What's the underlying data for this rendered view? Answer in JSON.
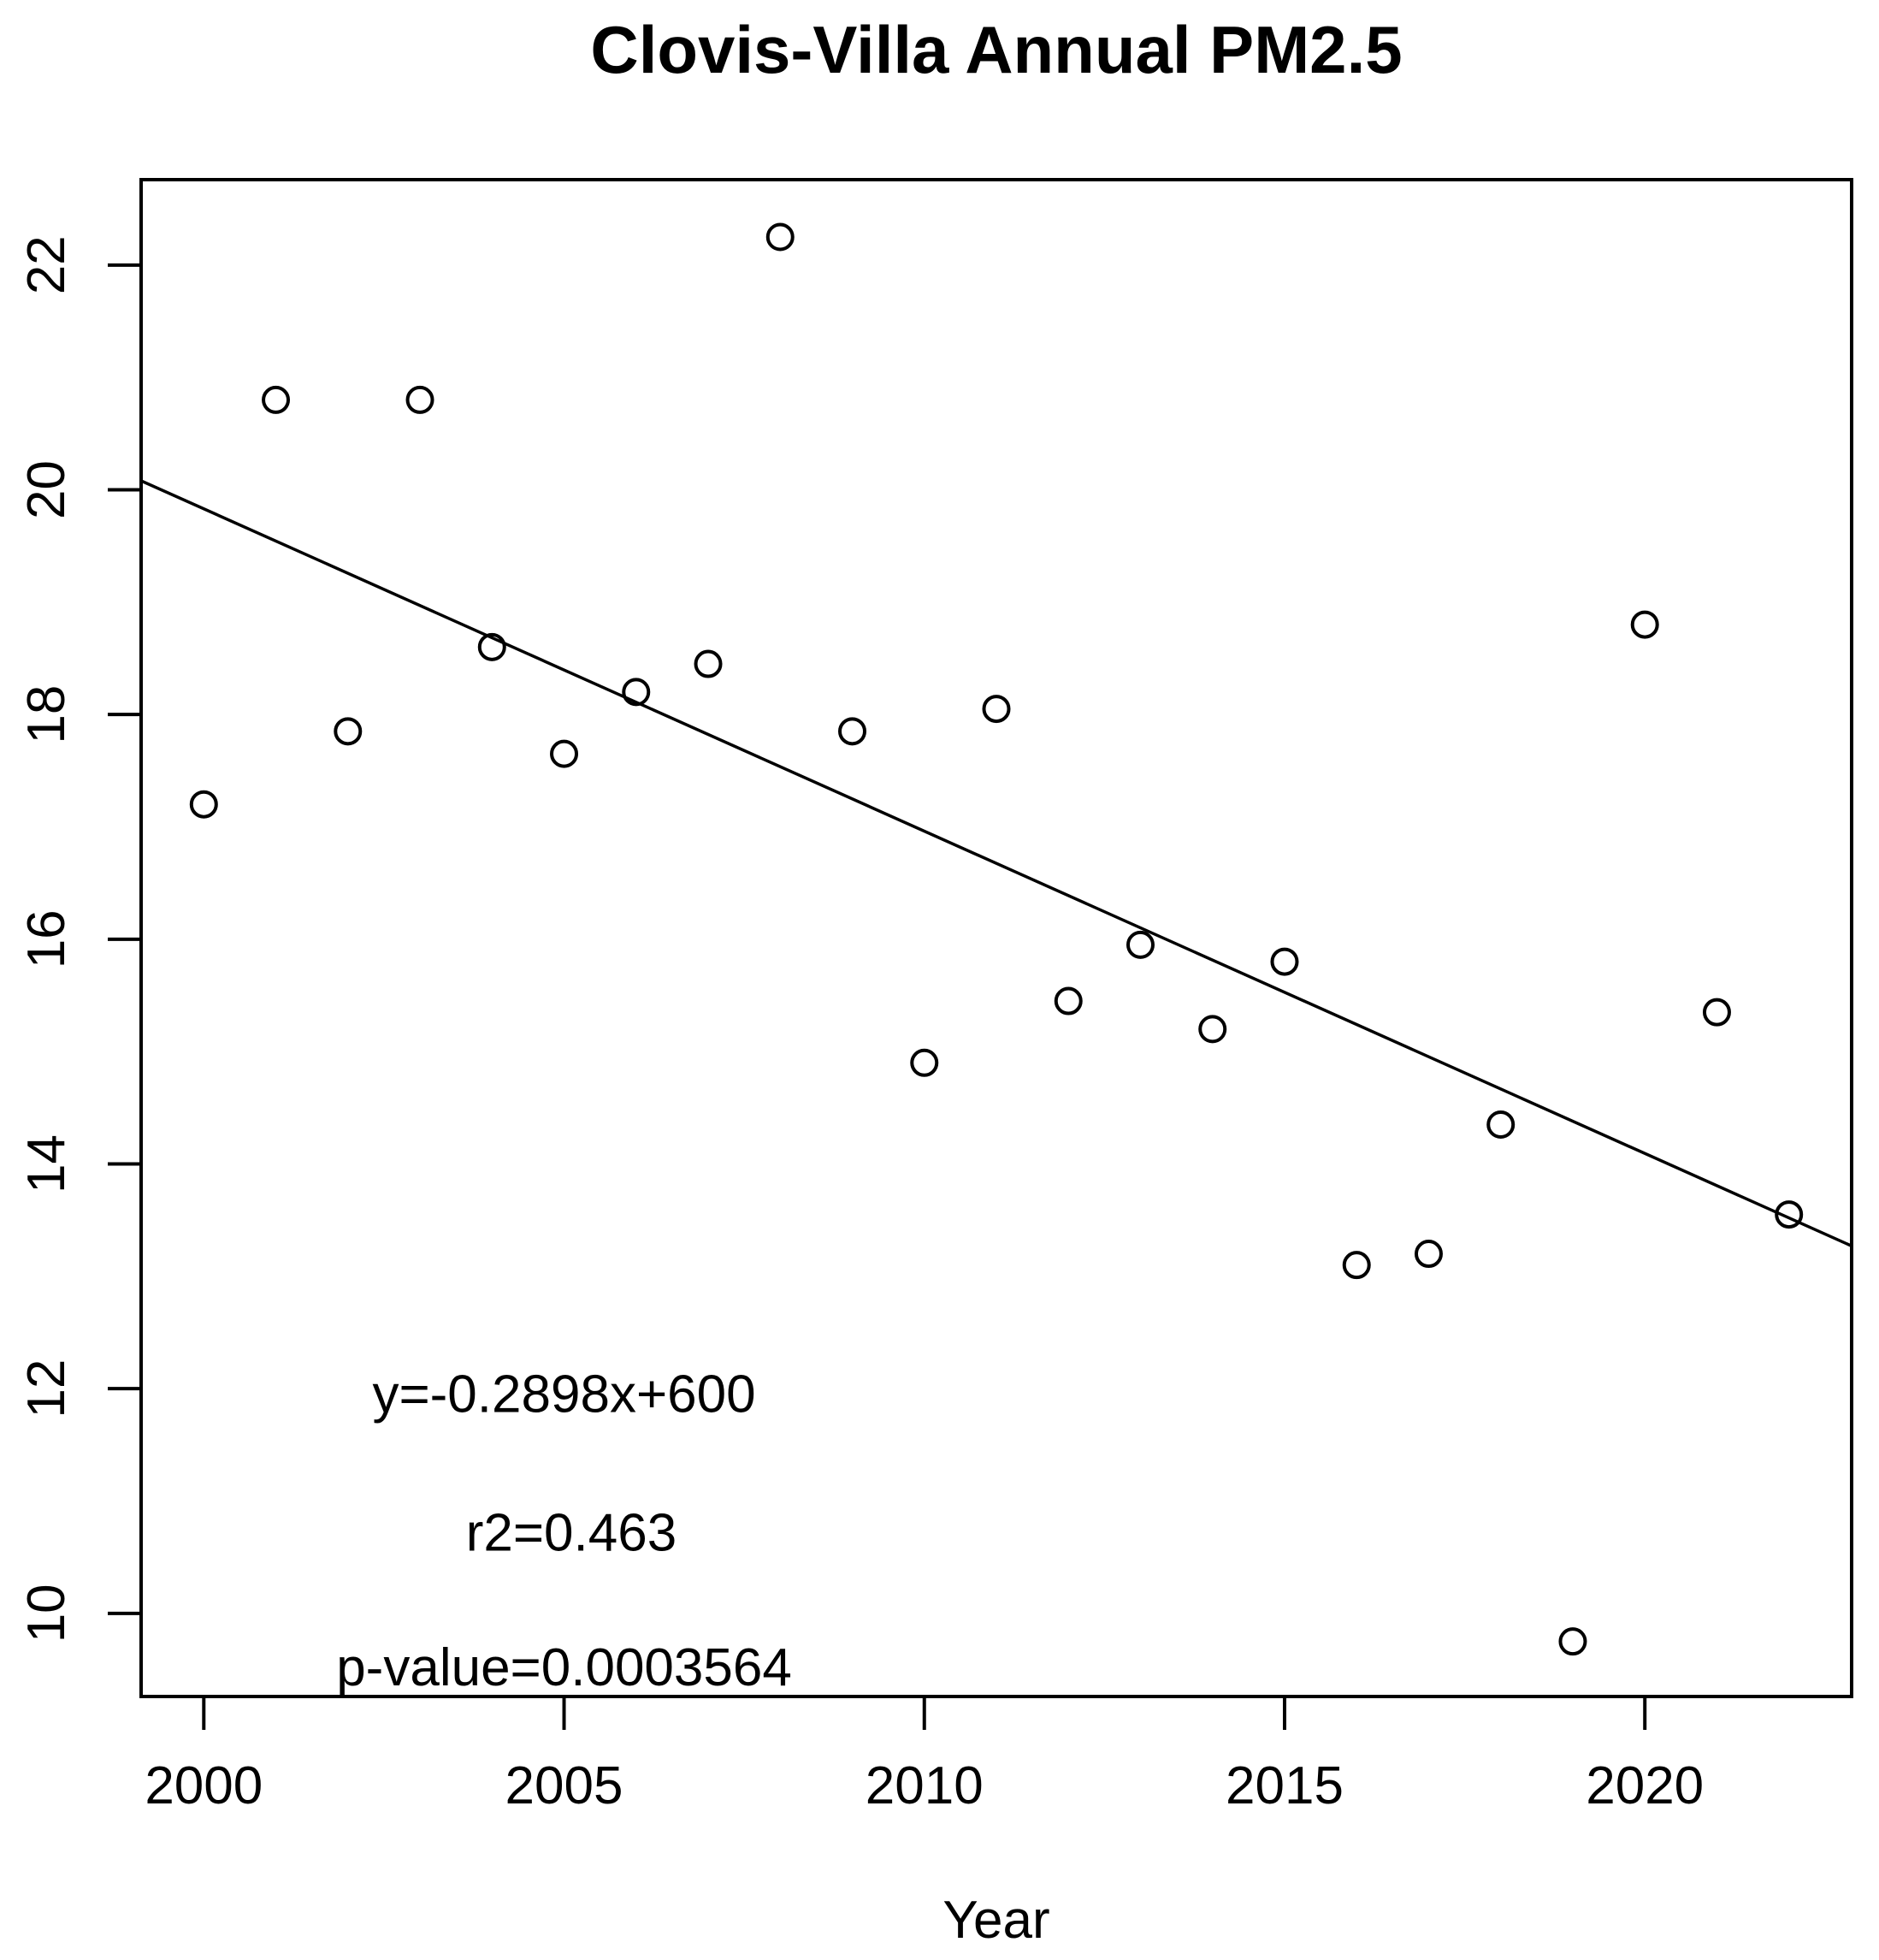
{
  "title": "Clovis-Villa Annual PM2.5",
  "chart_data": {
    "type": "scatter",
    "title": "Clovis-Villa Annual PM2.5",
    "xlabel": "Year",
    "ylabel": "",
    "x_range": [
      1999.13,
      2022.87
    ],
    "y_range": [
      9.26,
      22.76
    ],
    "x_ticks": [
      2000,
      2005,
      2010,
      2015,
      2020
    ],
    "y_ticks": [
      10,
      12,
      14,
      16,
      18,
      20,
      22
    ],
    "grid": false,
    "legend": null,
    "point_style": {
      "shape": "open-circle",
      "color": "#000000"
    },
    "points": [
      {
        "x": 2000,
        "y": 17.2
      },
      {
        "x": 2001,
        "y": 20.8
      },
      {
        "x": 2002,
        "y": 17.85
      },
      {
        "x": 2003,
        "y": 20.8
      },
      {
        "x": 2004,
        "y": 18.6
      },
      {
        "x": 2005,
        "y": 17.65
      },
      {
        "x": 2006,
        "y": 18.2
      },
      {
        "x": 2007,
        "y": 18.45
      },
      {
        "x": 2008,
        "y": 22.25
      },
      {
        "x": 2009,
        "y": 17.85
      },
      {
        "x": 2010,
        "y": 14.9
      },
      {
        "x": 2011,
        "y": 18.05
      },
      {
        "x": 2012,
        "y": 15.45
      },
      {
        "x": 2013,
        "y": 15.95
      },
      {
        "x": 2014,
        "y": 15.2
      },
      {
        "x": 2015,
        "y": 15.8
      },
      {
        "x": 2016,
        "y": 13.1
      },
      {
        "x": 2017,
        "y": 13.2
      },
      {
        "x": 2018,
        "y": 14.35
      },
      {
        "x": 2019,
        "y": 9.75
      },
      {
        "x": 2020,
        "y": 18.8
      },
      {
        "x": 2021,
        "y": 15.35
      },
      {
        "x": 2022,
        "y": 13.55
      }
    ],
    "trend_line": {
      "x1": 1999.13,
      "y1": 20.08,
      "x2": 2022.87,
      "y2": 13.27
    },
    "trend_equation": "y=-0.2898x+600",
    "r_squared": "r2=0.463",
    "p_value": "p-value=0.0003564",
    "annotations": [
      {
        "text": "y=-0.2898x+600",
        "x": 2005.0,
        "y": 11.95
      },
      {
        "text": "r2=0.463",
        "x": 2005.1,
        "y": 10.72
      },
      {
        "text": "p-value=0.0003564",
        "x": 2005.0,
        "y": 9.52
      }
    ]
  }
}
